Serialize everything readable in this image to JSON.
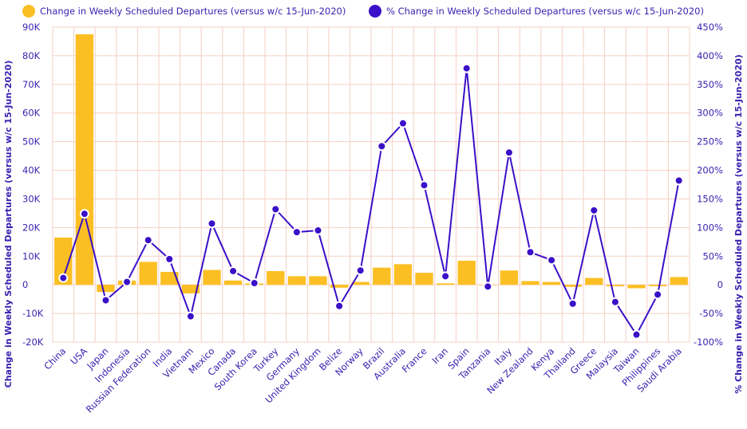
{
  "chart_data": {
    "type": "bar",
    "categories": [
      "China",
      "USA",
      "Japan",
      "Indonesia",
      "Russian Federation",
      "India",
      "Vietnam",
      "Mexico",
      "Canada",
      "South Korea",
      "Turkey",
      "Germany",
      "United Kingdom",
      "Belize",
      "Norway",
      "Brazil",
      "Australia",
      "France",
      "Iran",
      "Spain",
      "Tanzania",
      "Italy",
      "New Zealand",
      "Kenya",
      "Thailand",
      "Greece",
      "Malaysia",
      "Taiwan",
      "Philippines",
      "Saudi Arabia"
    ],
    "series": [
      {
        "name": "Change in Weekly Scheduled Departures (versus w/c 15-Jun-2020)",
        "type": "bar",
        "axis": "left",
        "color": "#fbbf24",
        "values": [
          16500,
          87500,
          -2500,
          1500,
          8000,
          4500,
          -3000,
          5200,
          1500,
          500,
          4800,
          3000,
          3000,
          -1000,
          1000,
          6000,
          7200,
          4200,
          500,
          8400,
          0,
          5000,
          1300,
          1000,
          -700,
          2400,
          -500,
          -1200,
          -500,
          2700
        ]
      },
      {
        "name": "% Change in Weekly Scheduled Departures (versus w/c 15-Jun-2020)",
        "type": "line",
        "axis": "right",
        "color": "#3a10c8",
        "values": [
          12,
          124,
          -27,
          5,
          78,
          45,
          -55,
          107,
          24,
          3,
          132,
          92,
          95,
          -37,
          25,
          242,
          282,
          174,
          15,
          378,
          -3,
          231,
          57,
          43,
          -33,
          130,
          -30,
          -87,
          -17,
          182
        ]
      }
    ],
    "ylabel": "Change in Weekly Scheduled Departures (versus w/c 15-Jun-2020)",
    "y2label": "% Change in Weekly Scheduled Departures (versus w/c 15-Jun-2020)",
    "ylim": [
      -20000,
      90000
    ],
    "y2lim": [
      -100,
      450
    ],
    "yticks": [
      "-20K",
      "-10K",
      "0",
      "10K",
      "20K",
      "30K",
      "40K",
      "50K",
      "60K",
      "70K",
      "80K",
      "90K"
    ],
    "y2ticks": [
      "-100%",
      "-50%",
      "0",
      "50%",
      "100%",
      "150%",
      "200%",
      "250%",
      "300%",
      "350%",
      "400%",
      "450%"
    ],
    "grid": true,
    "legend_position": "top"
  }
}
